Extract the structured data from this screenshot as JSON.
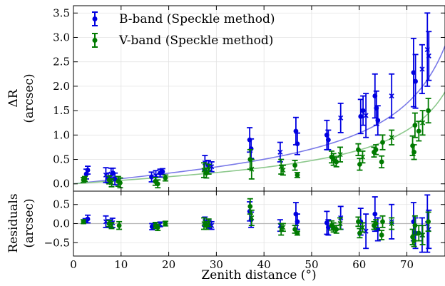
{
  "chart_data": [
    {
      "type": "scatter",
      "panel": "top",
      "ylabel_line1": "ΔR",
      "ylabel_line2": "(arcsec)",
      "xlim": [
        0,
        78
      ],
      "ylim": [
        -0.15,
        3.65
      ],
      "yticks": [
        "0.0",
        "0.5",
        "1.0",
        "1.5",
        "2.0",
        "2.5",
        "3.0",
        "3.5"
      ],
      "ytick_values": [
        0.0,
        0.5,
        1.0,
        1.5,
        2.0,
        2.5,
        3.0,
        3.5
      ],
      "grid": true,
      "legend_position": "top-left",
      "series": [
        {
          "name": "B-band (Speckle method)",
          "color": "#0000e0",
          "fit_color": "#7a7ae8",
          "fit_coefficient": 0.6,
          "points": [
            {
              "x": 2.7,
              "y": 0.2,
              "e": 0.1,
              "m": "o"
            },
            {
              "x": 3.0,
              "y": 0.28,
              "e": 0.08,
              "m": "o"
            },
            {
              "x": 6.8,
              "y": 0.18,
              "e": 0.15,
              "m": "x"
            },
            {
              "x": 7.3,
              "y": 0.12,
              "e": 0.1,
              "m": "o"
            },
            {
              "x": 7.9,
              "y": 0.2,
              "e": 0.12,
              "m": "x"
            },
            {
              "x": 8.3,
              "y": 0.22,
              "e": 0.1,
              "m": "o"
            },
            {
              "x": 8.7,
              "y": 0.1,
              "e": 0.12,
              "m": "o"
            },
            {
              "x": 16.4,
              "y": 0.14,
              "e": 0.1,
              "m": "o"
            },
            {
              "x": 17.3,
              "y": 0.17,
              "e": 0.1,
              "m": "x"
            },
            {
              "x": 18.2,
              "y": 0.22,
              "e": 0.08,
              "m": "o"
            },
            {
              "x": 18.7,
              "y": 0.25,
              "e": 0.06,
              "m": "o"
            },
            {
              "x": 27.6,
              "y": 0.43,
              "e": 0.15,
              "m": "x"
            },
            {
              "x": 28.3,
              "y": 0.38,
              "e": 0.1,
              "m": "o"
            },
            {
              "x": 29.0,
              "y": 0.35,
              "e": 0.1,
              "m": "x"
            },
            {
              "x": 37.0,
              "y": 0.9,
              "e": 0.25,
              "m": "o"
            },
            {
              "x": 37.3,
              "y": 0.72,
              "e": 0.2,
              "m": "o"
            },
            {
              "x": 43.4,
              "y": 0.65,
              "e": 0.2,
              "m": "x"
            },
            {
              "x": 46.7,
              "y": 1.08,
              "e": 0.28,
              "m": "o"
            },
            {
              "x": 47.0,
              "y": 0.82,
              "e": 0.22,
              "m": "o"
            },
            {
              "x": 53.2,
              "y": 1.0,
              "e": 0.3,
              "m": "o"
            },
            {
              "x": 53.5,
              "y": 0.9,
              "e": 0.2,
              "m": "o"
            },
            {
              "x": 56.1,
              "y": 1.35,
              "e": 0.3,
              "m": "x"
            },
            {
              "x": 60.3,
              "y": 1.38,
              "e": 0.35,
              "m": "o"
            },
            {
              "x": 60.8,
              "y": 1.5,
              "e": 0.3,
              "m": "o"
            },
            {
              "x": 61.4,
              "y": 1.4,
              "e": 0.45,
              "m": "x"
            },
            {
              "x": 63.3,
              "y": 1.8,
              "e": 0.45,
              "m": "o"
            },
            {
              "x": 63.6,
              "y": 1.55,
              "e": 0.35,
              "m": "o"
            },
            {
              "x": 63.9,
              "y": 1.3,
              "e": 0.3,
              "m": "o"
            },
            {
              "x": 66.8,
              "y": 1.8,
              "e": 0.45,
              "m": "x"
            },
            {
              "x": 71.4,
              "y": 2.28,
              "e": 0.7,
              "m": "o"
            },
            {
              "x": 71.8,
              "y": 2.1,
              "e": 0.55,
              "m": "o"
            },
            {
              "x": 73.2,
              "y": 2.35,
              "e": 0.5,
              "m": "x"
            },
            {
              "x": 74.3,
              "y": 2.75,
              "e": 0.75,
              "m": "x"
            },
            {
              "x": 74.6,
              "y": 2.62,
              "e": 0.5,
              "m": "x"
            }
          ]
        },
        {
          "name": "V-band (Speckle method)",
          "color": "#007a00",
          "fit_color": "#8cc88c",
          "fit_coefficient": 0.4,
          "points": [
            {
              "x": 2.1,
              "y": 0.08,
              "e": 0.05,
              "m": "o"
            },
            {
              "x": 2.4,
              "y": 0.1,
              "e": 0.05,
              "m": "o"
            },
            {
              "x": 7.5,
              "y": 0.08,
              "e": 0.08,
              "m": "o"
            },
            {
              "x": 8.0,
              "y": 0.02,
              "e": 0.08,
              "m": "x"
            },
            {
              "x": 9.4,
              "y": 0.05,
              "e": 0.1,
              "m": "o"
            },
            {
              "x": 9.8,
              "y": 0.02,
              "e": 0.1,
              "m": "o"
            },
            {
              "x": 17.2,
              "y": 0.05,
              "e": 0.08,
              "m": "o"
            },
            {
              "x": 17.7,
              "y": 0.0,
              "e": 0.08,
              "m": "o"
            },
            {
              "x": 19.3,
              "y": 0.12,
              "e": 0.06,
              "m": "o"
            },
            {
              "x": 27.4,
              "y": 0.28,
              "e": 0.15,
              "m": "x"
            },
            {
              "x": 27.9,
              "y": 0.22,
              "e": 0.1,
              "m": "o"
            },
            {
              "x": 28.4,
              "y": 0.3,
              "e": 0.1,
              "m": "x"
            },
            {
              "x": 37.1,
              "y": 0.5,
              "e": 0.2,
              "m": "o"
            },
            {
              "x": 37.4,
              "y": 0.3,
              "e": 0.2,
              "m": "x"
            },
            {
              "x": 43.6,
              "y": 0.35,
              "e": 0.15,
              "m": "x"
            },
            {
              "x": 44.0,
              "y": 0.28,
              "e": 0.1,
              "m": "x"
            },
            {
              "x": 46.5,
              "y": 0.38,
              "e": 0.1,
              "m": "o"
            },
            {
              "x": 47.0,
              "y": 0.18,
              "e": 0.05,
              "m": "o"
            },
            {
              "x": 54.2,
              "y": 0.55,
              "e": 0.12,
              "m": "o"
            },
            {
              "x": 54.6,
              "y": 0.5,
              "e": 0.12,
              "m": "o"
            },
            {
              "x": 55.2,
              "y": 0.45,
              "e": 0.1,
              "m": "o"
            },
            {
              "x": 56.0,
              "y": 0.6,
              "e": 0.15,
              "m": "x"
            },
            {
              "x": 59.8,
              "y": 0.7,
              "e": 0.12,
              "m": "o"
            },
            {
              "x": 60.1,
              "y": 0.4,
              "e": 0.12,
              "m": "o"
            },
            {
              "x": 60.7,
              "y": 0.55,
              "e": 0.12,
              "m": "x"
            },
            {
              "x": 63.1,
              "y": 0.65,
              "e": 0.1,
              "m": "o"
            },
            {
              "x": 63.5,
              "y": 0.7,
              "e": 0.1,
              "m": "o"
            },
            {
              "x": 64.7,
              "y": 0.45,
              "e": 0.12,
              "m": "o"
            },
            {
              "x": 64.9,
              "y": 0.85,
              "e": 0.15,
              "m": "o"
            },
            {
              "x": 66.8,
              "y": 0.95,
              "e": 0.15,
              "m": "x"
            },
            {
              "x": 71.2,
              "y": 0.78,
              "e": 0.2,
              "m": "o"
            },
            {
              "x": 71.5,
              "y": 0.65,
              "e": 0.15,
              "m": "o"
            },
            {
              "x": 71.7,
              "y": 1.2,
              "e": 0.25,
              "m": "o"
            },
            {
              "x": 72.5,
              "y": 1.08,
              "e": 0.2,
              "m": "o"
            },
            {
              "x": 73.3,
              "y": 1.25,
              "e": 0.25,
              "m": "x"
            },
            {
              "x": 74.5,
              "y": 1.5,
              "e": 0.25,
              "m": "o"
            }
          ]
        }
      ]
    },
    {
      "type": "scatter",
      "panel": "bottom",
      "xlabel": "Zenith distance (°)",
      "ylabel_line1": "Residuals",
      "ylabel_line2": "(arcsec)",
      "xlim": [
        0,
        78
      ],
      "ylim": [
        -0.85,
        0.85
      ],
      "xticks": [
        "0",
        "10",
        "20",
        "30",
        "40",
        "50",
        "60",
        "70"
      ],
      "xtick_values": [
        0,
        10,
        20,
        30,
        40,
        50,
        60,
        70
      ],
      "yticks": [
        "−0.5",
        "0.0",
        "0.5"
      ],
      "ytick_values": [
        -0.5,
        0.0,
        0.5
      ],
      "grid": true,
      "zero_line": true,
      "series": [
        {
          "name": "B-band (Speckle method)",
          "color": "#0000e0",
          "points": [
            {
              "x": 2.5,
              "y": 0.08,
              "e": 0.05,
              "m": "o"
            },
            {
              "x": 3.0,
              "y": 0.12,
              "e": 0.1,
              "m": "o"
            },
            {
              "x": 6.8,
              "y": 0.05,
              "e": 0.15,
              "m": "x"
            },
            {
              "x": 7.5,
              "y": 0.0,
              "e": 0.1,
              "m": "o"
            },
            {
              "x": 8.2,
              "y": 0.02,
              "e": 0.12,
              "m": "x"
            },
            {
              "x": 16.5,
              "y": -0.08,
              "e": 0.08,
              "m": "o"
            },
            {
              "x": 17.3,
              "y": -0.05,
              "e": 0.08,
              "m": "o"
            },
            {
              "x": 18.2,
              "y": -0.02,
              "e": 0.06,
              "m": "x"
            },
            {
              "x": 27.6,
              "y": 0.05,
              "e": 0.12,
              "m": "x"
            },
            {
              "x": 28.4,
              "y": -0.02,
              "e": 0.1,
              "m": "o"
            },
            {
              "x": 29.0,
              "y": -0.05,
              "e": 0.1,
              "m": "x"
            },
            {
              "x": 37.0,
              "y": 0.32,
              "e": 0.25,
              "m": "o"
            },
            {
              "x": 37.3,
              "y": 0.1,
              "e": 0.2,
              "m": "o"
            },
            {
              "x": 43.4,
              "y": -0.05,
              "e": 0.15,
              "m": "x"
            },
            {
              "x": 46.7,
              "y": 0.25,
              "e": 0.3,
              "m": "o"
            },
            {
              "x": 47.0,
              "y": 0.05,
              "e": 0.2,
              "m": "o"
            },
            {
              "x": 53.2,
              "y": 0.02,
              "e": 0.3,
              "m": "o"
            },
            {
              "x": 53.5,
              "y": -0.1,
              "e": 0.2,
              "m": "o"
            },
            {
              "x": 56.1,
              "y": 0.15,
              "e": 0.3,
              "m": "x"
            },
            {
              "x": 60.3,
              "y": 0.05,
              "e": 0.35,
              "m": "o"
            },
            {
              "x": 61.4,
              "y": -0.2,
              "e": 0.45,
              "m": "x"
            },
            {
              "x": 63.3,
              "y": 0.25,
              "e": 0.45,
              "m": "o"
            },
            {
              "x": 63.9,
              "y": -0.15,
              "e": 0.3,
              "m": "o"
            },
            {
              "x": 66.8,
              "y": 0.05,
              "e": 0.45,
              "m": "x"
            },
            {
              "x": 71.4,
              "y": 0.05,
              "e": 0.5,
              "m": "o"
            },
            {
              "x": 71.8,
              "y": -0.25,
              "e": 0.4,
              "m": "o"
            },
            {
              "x": 73.2,
              "y": -0.3,
              "e": 0.45,
              "m": "x"
            },
            {
              "x": 74.3,
              "y": 0.0,
              "e": 0.75,
              "m": "x"
            },
            {
              "x": 74.6,
              "y": -0.15,
              "e": 0.5,
              "m": "x"
            }
          ]
        },
        {
          "name": "V-band (Speckle method)",
          "color": "#007a00",
          "points": [
            {
              "x": 2.1,
              "y": 0.05,
              "e": 0.05,
              "m": "o"
            },
            {
              "x": 7.5,
              "y": 0.0,
              "e": 0.08,
              "m": "o"
            },
            {
              "x": 8.0,
              "y": -0.05,
              "e": 0.08,
              "m": "x"
            },
            {
              "x": 9.6,
              "y": -0.05,
              "e": 0.1,
              "m": "o"
            },
            {
              "x": 17.2,
              "y": -0.05,
              "e": 0.08,
              "m": "o"
            },
            {
              "x": 17.7,
              "y": -0.1,
              "e": 0.08,
              "m": "o"
            },
            {
              "x": 19.3,
              "y": 0.0,
              "e": 0.06,
              "m": "o"
            },
            {
              "x": 27.4,
              "y": 0.0,
              "e": 0.15,
              "m": "x"
            },
            {
              "x": 27.9,
              "y": -0.05,
              "e": 0.1,
              "m": "o"
            },
            {
              "x": 28.4,
              "y": 0.02,
              "e": 0.1,
              "m": "x"
            },
            {
              "x": 37.1,
              "y": 0.45,
              "e": 0.2,
              "m": "o"
            },
            {
              "x": 37.4,
              "y": 0.15,
              "e": 0.2,
              "m": "x"
            },
            {
              "x": 43.6,
              "y": -0.15,
              "e": 0.15,
              "m": "x"
            },
            {
              "x": 44.0,
              "y": -0.1,
              "e": 0.1,
              "m": "x"
            },
            {
              "x": 46.5,
              "y": -0.15,
              "e": 0.1,
              "m": "o"
            },
            {
              "x": 47.0,
              "y": -0.25,
              "e": 0.05,
              "m": "o"
            },
            {
              "x": 54.2,
              "y": -0.05,
              "e": 0.12,
              "m": "o"
            },
            {
              "x": 54.6,
              "y": -0.1,
              "e": 0.12,
              "m": "o"
            },
            {
              "x": 55.2,
              "y": -0.15,
              "e": 0.1,
              "m": "o"
            },
            {
              "x": 56.0,
              "y": 0.0,
              "e": 0.15,
              "m": "x"
            },
            {
              "x": 59.8,
              "y": 0.05,
              "e": 0.12,
              "m": "o"
            },
            {
              "x": 60.1,
              "y": -0.25,
              "e": 0.12,
              "m": "o"
            },
            {
              "x": 60.7,
              "y": -0.1,
              "e": 0.12,
              "m": "x"
            },
            {
              "x": 63.1,
              "y": -0.05,
              "e": 0.1,
              "m": "o"
            },
            {
              "x": 63.5,
              "y": 0.0,
              "e": 0.1,
              "m": "o"
            },
            {
              "x": 64.7,
              "y": -0.3,
              "e": 0.12,
              "m": "o"
            },
            {
              "x": 64.9,
              "y": 0.05,
              "e": 0.15,
              "m": "o"
            },
            {
              "x": 66.8,
              "y": 0.0,
              "e": 0.15,
              "m": "x"
            },
            {
              "x": 71.2,
              "y": -0.35,
              "e": 0.2,
              "m": "o"
            },
            {
              "x": 71.5,
              "y": -0.45,
              "e": 0.15,
              "m": "o"
            },
            {
              "x": 71.7,
              "y": -0.05,
              "e": 0.25,
              "m": "o"
            },
            {
              "x": 72.5,
              "y": -0.25,
              "e": 0.2,
              "m": "o"
            },
            {
              "x": 73.3,
              "y": -0.3,
              "e": 0.25,
              "m": "x"
            },
            {
              "x": 74.5,
              "y": 0.05,
              "e": 0.25,
              "m": "o"
            }
          ]
        }
      ]
    }
  ]
}
